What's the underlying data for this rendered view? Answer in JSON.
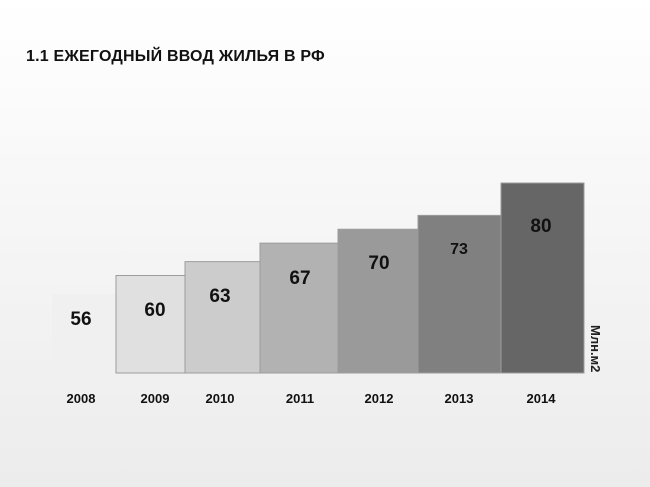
{
  "slide": {
    "title": "1.1 ЕЖЕГОДНЫЙ ВВОД ЖИЛЬЯ В РФ",
    "unit_label": "Млн.м2"
  },
  "chart_data": {
    "type": "bar",
    "title": "1.1 ЕЖЕГОДНЫЙ ВВОД ЖИЛЬЯ В РФ",
    "categories": [
      "2008",
      "2009",
      "2010",
      "2011",
      "2012",
      "2013",
      "2014"
    ],
    "values": [
      56,
      60,
      63,
      67,
      70,
      73,
      80
    ],
    "value_labels": [
      "56",
      "60",
      "63",
      "67",
      "70",
      "73",
      "80"
    ],
    "ylabel": "Млн.м2",
    "bar_colors": [
      "#f0f0f0",
      "#e0e0e0",
      "#cccccc",
      "#b2b2b2",
      "#9a9a9a",
      "#808080",
      "#666666"
    ],
    "grid": false,
    "legend": "none"
  }
}
